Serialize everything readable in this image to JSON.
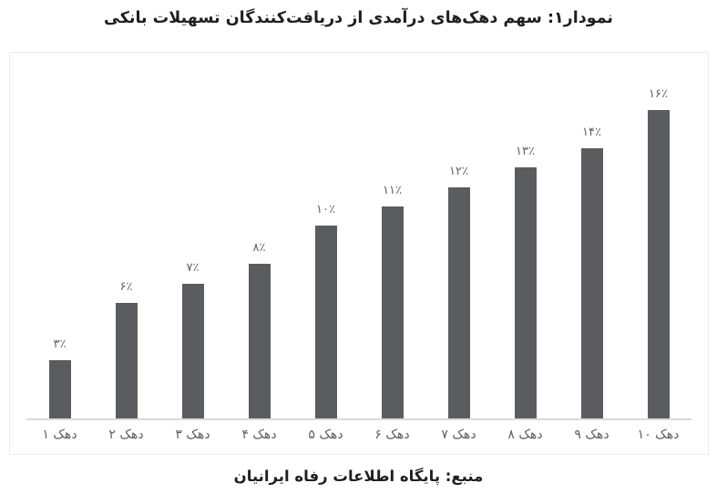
{
  "title": "نمودار۱: سهم دهک‌های درآمدی از دریافت‌کنندگان تسهیلات بانکی",
  "source": "منبع: پایگاه اطلاعات رفاه ایرانیان",
  "colors": {
    "bar": "#5b5c60",
    "title_text": "#1f1f1f",
    "value_label": "#606166",
    "axis_label": "#5e5f63",
    "axis_line": "#d8d9da",
    "panel_border": "#ececec",
    "background": "#ffffff"
  },
  "chart_data": {
    "type": "bar",
    "title": "نمودار۱: سهم دهک‌های درآمدی از دریافت‌کنندگان تسهیلات بانکی",
    "source": "منبع: پایگاه اطلاعات رفاه ایرانیان",
    "categories": [
      "دهک ۱",
      "دهک ۲",
      "دهک ۳",
      "دهک ۴",
      "دهک ۵",
      "دهک ۶",
      "دهک ۷",
      "دهک ۸",
      "دهک ۹",
      "دهک ۱۰"
    ],
    "values": [
      3,
      6,
      7,
      8,
      10,
      11,
      12,
      13,
      14,
      16
    ],
    "value_labels": [
      "۳٪",
      "۶٪",
      "۷٪",
      "۸٪",
      "۱۰٪",
      "۱۱٪",
      "۱۲٪",
      "۱۳٪",
      "۱۴٪",
      "۱۶٪"
    ],
    "xlabel": "",
    "ylabel": "",
    "ylim": [
      0,
      19
    ],
    "grid": false,
    "legend": false,
    "data_labels": true,
    "bar_order": "left-to-right ascending deciles"
  }
}
